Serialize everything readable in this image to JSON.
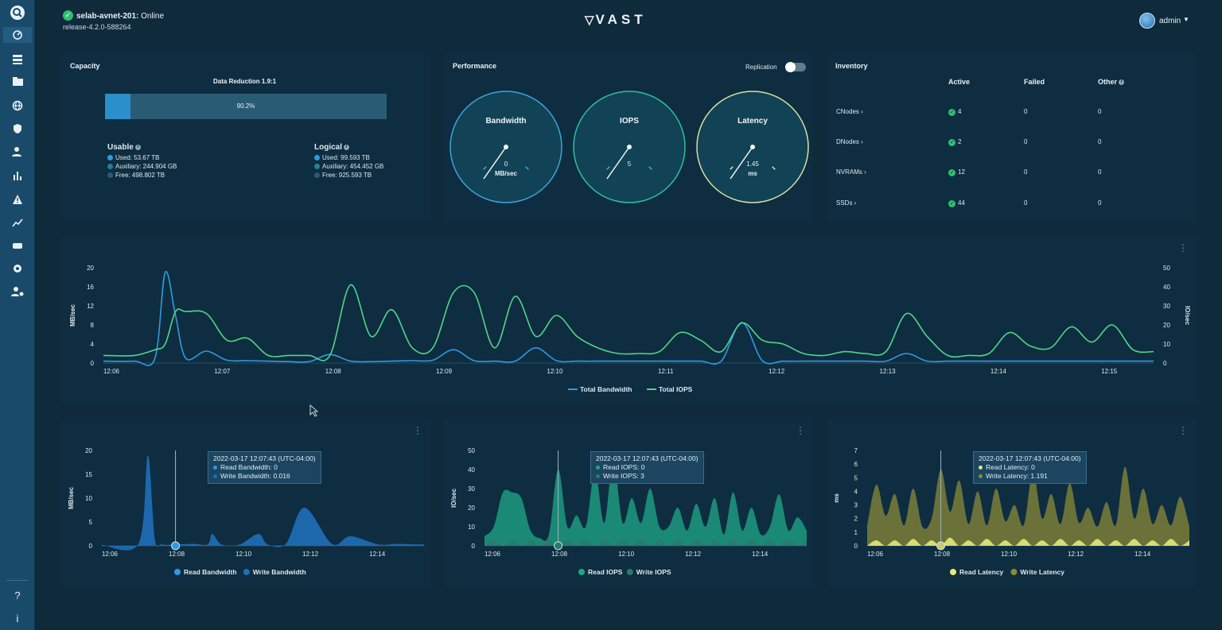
{
  "sidebar": {
    "icons": [
      "search-icon",
      "dashboard-icon",
      "hardware-icon",
      "folder-icon",
      "globe-icon",
      "shield-icon",
      "users-icon",
      "analytics-icon",
      "alert-icon",
      "trends-icon",
      "storage-icon",
      "settings-icon",
      "admin-settings-icon",
      "help-icon",
      "info-icon"
    ],
    "help_label": "?",
    "info_label": "i"
  },
  "header": {
    "cluster_name": "selab-avnet-201:",
    "cluster_status": " Online",
    "release": "release-4.2.0-588264",
    "logo": "VAST",
    "user": "admin"
  },
  "capacity": {
    "title": "Capacity",
    "data_reduction": "Data Reduction 1.9:1",
    "fill_fraction": 0.09,
    "fill_label": "90.2%",
    "usable": {
      "heading": "Usable",
      "used": "Used: 53.67 TB",
      "auxiliary": "Auxiliary: 244.904 GB",
      "free": "Free: 498.802 TB"
    },
    "logical": {
      "heading": "Logical",
      "used": "Used: 99.593 TB",
      "auxiliary": "Auxiliary: 454.452 GB",
      "free": "Free: 925.593 TB"
    }
  },
  "performance": {
    "title": "Performance",
    "replication_label": "Replication",
    "replication_on": false,
    "gauges": [
      {
        "label": "Bandwidth",
        "value": "0",
        "unit": "MB/sec",
        "fraction": 0.12,
        "color": "#3aa6dd"
      },
      {
        "label": "IOPS",
        "value": "5",
        "unit": "",
        "fraction": 0.12,
        "color": "#2fc0a0"
      },
      {
        "label": "Latency",
        "value": "1.45",
        "unit": "ms",
        "fraction": 0.12,
        "color": "#d8e0a0"
      }
    ]
  },
  "inventory": {
    "title": "Inventory",
    "columns": [
      "Active",
      "Failed",
      "Other"
    ],
    "rows": [
      {
        "name": "CNodes ›",
        "active": "4",
        "failed": "0",
        "other": "0"
      },
      {
        "name": "DNodes ›",
        "active": "2",
        "failed": "0",
        "other": "0"
      },
      {
        "name": "NVRAMs ›",
        "active": "12",
        "failed": "0",
        "other": "0"
      },
      {
        "name": "SSDs ›",
        "active": "44",
        "failed": "0",
        "other": "0"
      }
    ]
  },
  "chart_data": [
    {
      "type": "line",
      "ylabel": "MB/sec",
      "y2label": "IO/sec",
      "ylim": [
        0,
        20
      ],
      "y2lim": [
        0,
        50
      ],
      "yticks": [
        "0",
        "4",
        "8",
        "12",
        "16",
        "20"
      ],
      "y2ticks": [
        "0",
        "10",
        "20",
        "30",
        "40",
        "50"
      ],
      "xticks": [
        "12:06",
        "12:07",
        "12:08",
        "12:09",
        "12:10",
        "12:11",
        "12:12",
        "12:13",
        "12:14",
        "12:15"
      ],
      "x": [
        0,
        0.3,
        0.5,
        0.6,
        0.7,
        0.8,
        1.0,
        1.2,
        1.4,
        1.6,
        1.8,
        2.0,
        2.2,
        2.4,
        2.6,
        2.8,
        3.0,
        3.2,
        3.4,
        3.6,
        3.8,
        4.0,
        4.2,
        4.4,
        4.6,
        4.8,
        5.0,
        5.2,
        5.4,
        5.6,
        5.8,
        6.0,
        6.2,
        6.4,
        6.6,
        6.8,
        7.0,
        7.2,
        7.4,
        7.6,
        7.8,
        8.0,
        8.2,
        8.4,
        8.6,
        8.8,
        9.0,
        9.2,
        9.4,
        9.6,
        9.8,
        10.0,
        10.2
      ],
      "series": [
        {
          "name": "Total Bandwidth",
          "color": "#2e9be0",
          "values": [
            0.4,
            0.4,
            1,
            19,
            10,
            1,
            2.5,
            0.6,
            0.5,
            0.4,
            0.3,
            0.3,
            1.8,
            0.4,
            0.3,
            0.4,
            0.5,
            0.6,
            2.8,
            0.5,
            0.4,
            0.4,
            3.2,
            0.5,
            0.4,
            0.4,
            0.4,
            0.4,
            0.4,
            0.4,
            0.4,
            0.4,
            8.5,
            0.5,
            0.4,
            0.4,
            0.4,
            0.4,
            0.4,
            0.4,
            2.0,
            0.4,
            0.4,
            0.4,
            0.4,
            0.4,
            0.4,
            0.4,
            0.4,
            0.4,
            0.4,
            0.4,
            0.4
          ]
        },
        {
          "name": "Total IOPS",
          "color": "#4fd68a",
          "values": [
            4,
            4,
            7,
            10,
            27,
            27,
            26,
            12,
            13,
            4,
            4,
            4,
            4,
            41,
            14,
            28,
            8,
            8,
            37,
            37,
            8,
            35,
            14,
            25,
            14,
            8,
            5,
            5,
            6,
            16,
            12,
            6,
            21,
            12,
            10,
            5,
            4,
            6,
            5,
            6,
            26,
            14,
            4,
            4,
            5,
            16,
            9,
            8,
            19,
            11,
            20,
            7,
            6
          ]
        }
      ],
      "legend": "bottom-center"
    },
    {
      "type": "area",
      "ylabel": "MB/sec",
      "ylim": [
        0,
        20
      ],
      "yticks": [
        "0",
        "5",
        "10",
        "15",
        "20"
      ],
      "xticks": [
        "12:06",
        "12:08",
        "12:10",
        "12:12",
        "12:14"
      ],
      "x": [
        0,
        0.8,
        1.0,
        1.15,
        1.3,
        1.6,
        2.0,
        2.3,
        2.4,
        2.6,
        3.0,
        3.4,
        3.6,
        4.0,
        4.4,
        5.0,
        5.4,
        6.0,
        6.4,
        6.8,
        7.0
      ],
      "series": [
        {
          "name": "Read Bandwidth",
          "color": "#2e9be0",
          "values": [
            0,
            0,
            0,
            0,
            0,
            0,
            0,
            0,
            0,
            0,
            0,
            0,
            0,
            0,
            0,
            0,
            0,
            0,
            0,
            0,
            0
          ]
        },
        {
          "name": "Write Bandwidth",
          "color": "#1f6fb8",
          "values": [
            0.2,
            0.5,
            19,
            1.5,
            0.3,
            0.3,
            0.4,
            0.3,
            2.5,
            0.3,
            0.3,
            2.5,
            0.3,
            0.4,
            8,
            0.4,
            2.0,
            0.3,
            0.4,
            0.3,
            0.3
          ]
        }
      ],
      "tooltip": {
        "time": "2022-03-17 12:07:43 (UTC-04:00)",
        "lines": [
          "Read Bandwidth: 0",
          "Write Bandwidth: 0.016"
        ]
      },
      "legend": "bottom-center"
    },
    {
      "type": "area",
      "ylabel": "IO/sec",
      "ylim": [
        0,
        50
      ],
      "yticks": [
        "0",
        "10",
        "20",
        "30",
        "40",
        "50"
      ],
      "xticks": [
        "12:06",
        "12:08",
        "12:10",
        "12:12",
        "12:14"
      ],
      "x": [
        0,
        0.2,
        0.4,
        0.6,
        0.8,
        1.0,
        1.2,
        1.4,
        1.6,
        1.8,
        2.0,
        2.2,
        2.4,
        2.6,
        2.8,
        3.0,
        3.2,
        3.4,
        3.6,
        3.8,
        4.0,
        4.2,
        4.4,
        4.6,
        4.8,
        5.0,
        5.2,
        5.4,
        5.6,
        5.8,
        6.0,
        6.2,
        6.4,
        6.6,
        6.8,
        7.0
      ],
      "series": [
        {
          "name": "Read IOPS",
          "color": "#1fa888",
          "values": [
            5,
            10,
            28,
            28,
            25,
            8,
            4,
            6,
            40,
            10,
            16,
            10,
            39,
            12,
            45,
            12,
            25,
            12,
            30,
            10,
            10,
            20,
            8,
            22,
            10,
            25,
            6,
            28,
            8,
            20,
            6,
            10,
            27,
            8,
            15,
            8
          ]
        },
        {
          "name": "Write IOPS",
          "color": "#2b7a6a",
          "values": [
            0,
            3,
            0,
            3,
            0,
            3,
            0,
            3,
            0,
            3,
            0,
            3,
            0,
            3,
            0,
            3,
            0,
            3,
            0,
            3,
            0,
            3,
            0,
            3,
            0,
            3,
            0,
            3,
            0,
            3,
            0,
            3,
            0,
            3,
            0,
            3
          ]
        }
      ],
      "tooltip": {
        "time": "2022-03-17 12:07:43 (UTC-04:00)",
        "lines": [
          "Read IOPS: 0",
          "Write IOPS: 3"
        ]
      },
      "legend": "bottom-center"
    },
    {
      "type": "area",
      "ylabel": "ms",
      "ylim": [
        0,
        7
      ],
      "yticks": [
        "0",
        "1",
        "2",
        "3",
        "4",
        "5",
        "6",
        "7"
      ],
      "xticks": [
        "12:06",
        "12:08",
        "12:10",
        "12:12",
        "12:14"
      ],
      "x": [
        0,
        0.2,
        0.4,
        0.6,
        0.8,
        1.0,
        1.2,
        1.4,
        1.6,
        1.8,
        2.0,
        2.2,
        2.4,
        2.6,
        2.8,
        3.0,
        3.2,
        3.4,
        3.6,
        3.8,
        4.0,
        4.2,
        4.4,
        4.6,
        4.8,
        5.0,
        5.2,
        5.4,
        5.6,
        5.8,
        6.0,
        6.2,
        6.4,
        6.6,
        6.8,
        7.0
      ],
      "series": [
        {
          "name": "Write Latency",
          "color": "#8a8a38",
          "values": [
            1.5,
            4.5,
            2.2,
            3.8,
            1.5,
            4.2,
            1.4,
            2.0,
            5.6,
            2.5,
            4.8,
            1.6,
            4.0,
            1.5,
            4.2,
            1.8,
            3.0,
            1.5,
            5.4,
            2.0,
            3.8,
            1.6,
            4.6,
            1.7,
            2.8,
            1.4,
            3.2,
            1.5,
            5.8,
            2.0,
            4.2,
            1.6,
            3.0,
            1.5,
            3.6,
            1.4
          ]
        },
        {
          "name": "Read Latency",
          "color": "#e4e87a",
          "values": [
            0,
            0.4,
            0,
            0.4,
            0,
            0.5,
            0,
            0.4,
            0,
            0.6,
            0,
            0.4,
            0,
            0.5,
            0,
            0.4,
            0,
            0.5,
            0,
            0.4,
            0,
            0.5,
            0,
            0.4,
            0,
            0.5,
            0,
            0.4,
            0,
            0.5,
            0,
            0.4,
            0,
            0.5,
            0,
            0.4
          ]
        }
      ],
      "tooltip": {
        "time": "2022-03-17 12:07:43 (UTC-04:00)",
        "lines": [
          "Read Latency: 0",
          "Write Latency: 1.191"
        ]
      },
      "legend": "bottom-center"
    }
  ]
}
